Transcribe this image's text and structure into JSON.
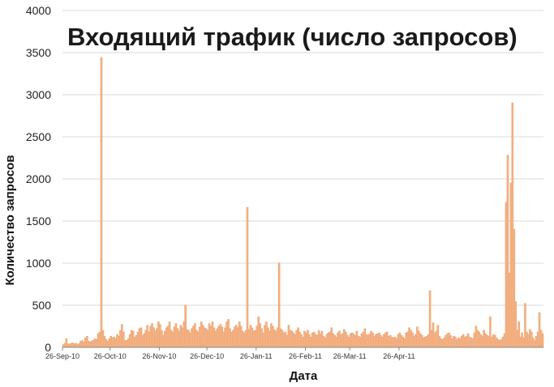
{
  "chart_data": {
    "type": "bar",
    "title": "Входящий трафик (число запросов)",
    "xlabel": "Дата",
    "ylabel": "Количество запросов",
    "ylim": [
      0,
      4000
    ],
    "y_ticks": [
      0,
      500,
      1000,
      1500,
      2000,
      2500,
      3000,
      3500,
      4000
    ],
    "x_tick_labels": [
      "26-Sep-10",
      "26-Oct-10",
      "26-Nov-10",
      "26-Dec-10",
      "26-Jan-11",
      "26-Feb-11",
      "26-Mar-11",
      "26-Apr-11"
    ],
    "x_start": "2010-09-26",
    "grid": "horizontal",
    "bar_color": "#f8c59f",
    "bar_edge_color": "#f0a877",
    "series": [
      {
        "values": [
          30,
          45,
          100,
          40,
          35,
          45,
          50,
          40,
          45,
          30,
          40,
          70,
          80,
          60,
          110,
          130,
          70,
          60,
          75,
          80,
          100,
          90,
          160,
          180,
          3440,
          200,
          130,
          90,
          70,
          100,
          130,
          110,
          120,
          100,
          150,
          130,
          200,
          270,
          180,
          80,
          80,
          100,
          150,
          200,
          190,
          120,
          140,
          180,
          220,
          230,
          140,
          160,
          200,
          260,
          180,
          250,
          280,
          230,
          190,
          220,
          300,
          270,
          200,
          140,
          190,
          230,
          250,
          300,
          200,
          180,
          240,
          280,
          220,
          190,
          260,
          230,
          300,
          500,
          210,
          200,
          170,
          220,
          250,
          280,
          200,
          180,
          240,
          300,
          260,
          230,
          220,
          200,
          280,
          250,
          300,
          230,
          190,
          220,
          250,
          270,
          240,
          180,
          230,
          300,
          330,
          220,
          180,
          200,
          240,
          260,
          230,
          300,
          250,
          190,
          170,
          200,
          1660,
          210,
          260,
          230,
          190,
          200,
          250,
          360,
          280,
          220,
          170,
          260,
          300,
          230,
          190,
          280,
          250,
          210,
          190,
          230,
          1000,
          220,
          200,
          170,
          180,
          140,
          260,
          200,
          190,
          170,
          150,
          200,
          230,
          180,
          150,
          120,
          190,
          170,
          200,
          150,
          120,
          170,
          180,
          150,
          140,
          200,
          160,
          190,
          130,
          110,
          150,
          170,
          180,
          230,
          160,
          140,
          120,
          170,
          190,
          150,
          160,
          210,
          180,
          140,
          120,
          160,
          170,
          150,
          140,
          190,
          130,
          120,
          160,
          180,
          220,
          150,
          140,
          160,
          190,
          170,
          130,
          150,
          160,
          170,
          140,
          120,
          150,
          170,
          180,
          130,
          140,
          120,
          110,
          120,
          100,
          150,
          170,
          140,
          120,
          100,
          170,
          180,
          230,
          200,
          170,
          130,
          150,
          240,
          190,
          160,
          140,
          110,
          120,
          130,
          150,
          670,
          200,
          290,
          170,
          190,
          260,
          130,
          100,
          90,
          110,
          140,
          160,
          170,
          140,
          100,
          130,
          120,
          90,
          110,
          100,
          130,
          150,
          120,
          130,
          160,
          120,
          110,
          100,
          170,
          250,
          200,
          180,
          150,
          130,
          200,
          160,
          140,
          130,
          360,
          120,
          150,
          140,
          110,
          90,
          80,
          90,
          120,
          160,
          1720,
          2280,
          880,
          1950,
          2900,
          1400,
          540,
          200,
          300,
          120,
          170,
          110,
          520,
          180,
          150,
          210,
          180,
          110,
          80,
          130,
          180,
          410,
          200,
          160
        ]
      }
    ]
  }
}
